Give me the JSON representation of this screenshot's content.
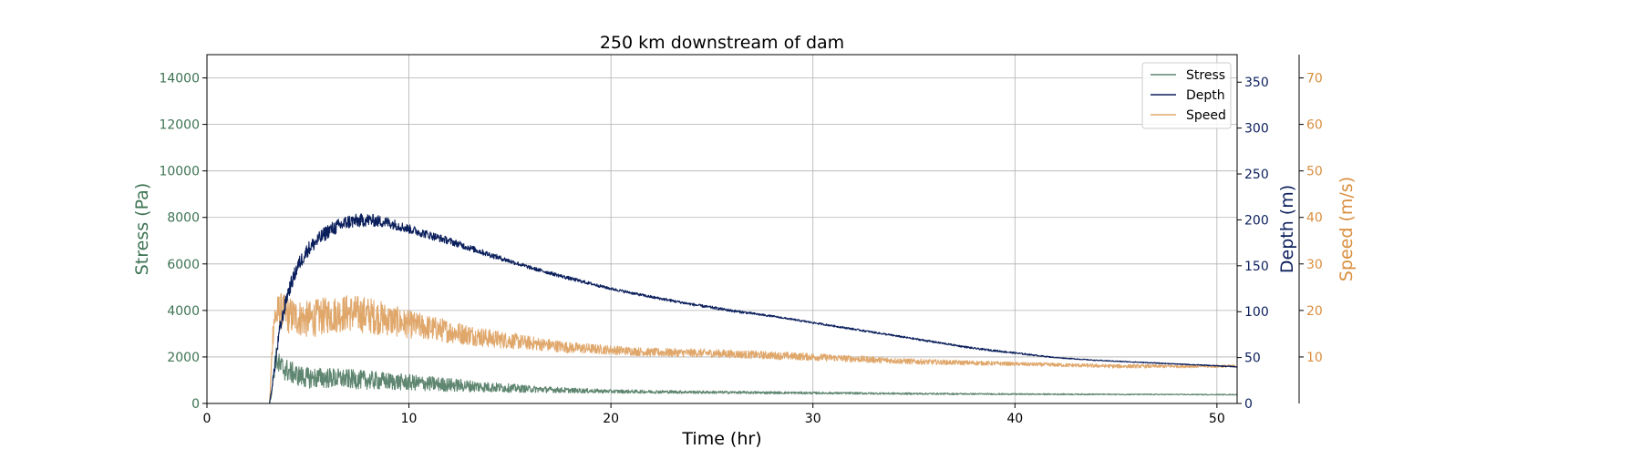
{
  "chart_data": {
    "type": "line",
    "title": "250 km downstream of dam",
    "xlabel": "Time (hr)",
    "xlim": [
      0,
      51
    ],
    "xticks": [
      0,
      10,
      20,
      30,
      40,
      50
    ],
    "grid": true,
    "legend": {
      "placement": "top-right",
      "entries": [
        "Stress",
        "Depth",
        "Speed"
      ]
    },
    "axes": {
      "stress": {
        "label": "Stress (Pa)",
        "side": "left",
        "lim": [
          0,
          15000
        ],
        "ticks": [
          0,
          2000,
          4000,
          6000,
          8000,
          10000,
          12000,
          14000
        ],
        "color": "#3d7352"
      },
      "depth": {
        "label": "Depth (m)",
        "side": "right",
        "lim": [
          0,
          380
        ],
        "ticks": [
          0,
          50,
          100,
          150,
          200,
          250,
          300,
          350
        ],
        "color": "#0b1f5c"
      },
      "speed": {
        "label": "Speed (m/s)",
        "side": "right-outer",
        "lim": [
          0,
          75
        ],
        "ticks": [
          10,
          20,
          30,
          40,
          50,
          60,
          70
        ],
        "color": "#d98e3e"
      }
    },
    "series": [
      {
        "name": "Stress",
        "axis": "stress",
        "color": "#5f8670",
        "x": [
          0,
          3.1,
          3.2,
          3.4,
          3.6,
          4,
          4.5,
          5,
          6,
          7,
          8,
          9,
          10,
          12,
          14,
          16,
          18,
          20,
          25,
          30,
          35,
          40,
          45,
          50,
          51
        ],
        "y": [
          0,
          0,
          500,
          2000,
          1600,
          1400,
          1200,
          1100,
          1100,
          1050,
          1000,
          950,
          900,
          800,
          700,
          620,
          560,
          520,
          480,
          450,
          420,
          400,
          390,
          380,
          380
        ],
        "noise": [
          0,
          0,
          200,
          500,
          500,
          500,
          450,
          450,
          450,
          420,
          400,
          380,
          350,
          300,
          220,
          150,
          110,
          80,
          60,
          50,
          40,
          30,
          25,
          20,
          20
        ]
      },
      {
        "name": "Depth",
        "axis": "depth",
        "color": "#0b1f5c",
        "x": [
          0,
          3.1,
          3.3,
          3.6,
          4,
          4.5,
          5,
          6,
          7,
          8,
          9,
          10,
          12,
          14,
          16,
          18,
          20,
          22,
          24,
          26,
          28,
          30,
          32,
          34,
          36,
          38,
          40,
          42,
          44,
          46,
          48,
          50,
          51
        ],
        "y": [
          0,
          0,
          30,
          80,
          120,
          150,
          168,
          188,
          198,
          200,
          197,
          190,
          177,
          162,
          148,
          136,
          125,
          116,
          108,
          101,
          95,
          88,
          81,
          74,
          67,
          60,
          55,
          50,
          47,
          45,
          43,
          41,
          40
        ],
        "noise": [
          0,
          0,
          5,
          8,
          8,
          8,
          8,
          8,
          8,
          7,
          6,
          5,
          4,
          3,
          2,
          2,
          1.5,
          1.5,
          1.5,
          1.5,
          1,
          1,
          1,
          1,
          1,
          1,
          1,
          0.5,
          0.5,
          0.5,
          0.5,
          0.5,
          0.5
        ]
      },
      {
        "name": "Speed",
        "axis": "speed",
        "color": "#e0a76b",
        "x": [
          0,
          3.1,
          3.3,
          3.6,
          4,
          5,
          6,
          7,
          8,
          9,
          10,
          12,
          14,
          16,
          18,
          20,
          22,
          25,
          30,
          35,
          40,
          45,
          50,
          51
        ],
        "y": [
          0,
          0,
          18,
          20,
          19,
          18,
          19,
          19.5,
          19,
          18,
          17,
          15.5,
          14,
          13,
          12,
          11.5,
          11,
          10.8,
          10,
          9,
          8.5,
          8,
          8,
          8
        ],
        "noise": [
          0,
          0,
          4,
          4,
          4,
          4,
          4,
          4,
          4,
          3.5,
          3,
          2.5,
          2,
          1.5,
          1.2,
          1,
          0.9,
          0.9,
          0.8,
          0.6,
          0.4,
          0.4,
          0.3,
          0.3
        ]
      }
    ]
  }
}
